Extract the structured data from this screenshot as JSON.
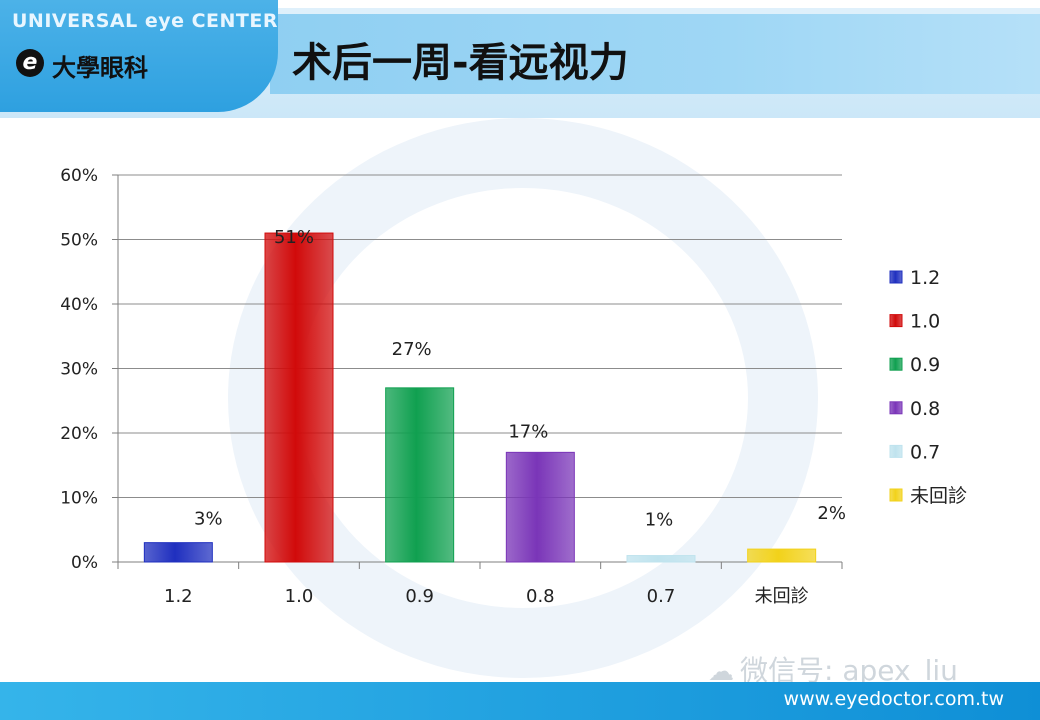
{
  "header": {
    "brand_en": "UNIVERSAL eye CENTER",
    "brand_mark": "e",
    "brand_zh": "大學眼科",
    "title": "术后一周-看远视力"
  },
  "footer": {
    "wechat": "微信号: apex_liu",
    "website": "www.eyedoctor.com.tw"
  },
  "chart_data": {
    "type": "bar",
    "title": "",
    "xlabel": "",
    "ylabel": "",
    "categories": [
      "1.2",
      "1.0",
      "0.9",
      "0.8",
      "0.7",
      "未回診"
    ],
    "values": [
      3,
      51,
      27,
      17,
      1,
      2
    ],
    "value_labels": [
      "3%",
      "51%",
      "27%",
      "17%",
      "1%",
      "2%"
    ],
    "colors": [
      "#1f2fbf",
      "#d10a0a",
      "#10a050",
      "#7a35b8",
      "#bfe3ee",
      "#f2d21a"
    ],
    "ylim": [
      0,
      60
    ],
    "yticks": [
      "0%",
      "10%",
      "20%",
      "30%",
      "40%",
      "50%",
      "60%"
    ],
    "grid": true,
    "legend": {
      "position": "right",
      "entries": [
        "1.2",
        "1.0",
        "0.9",
        "0.8",
        "0.7",
        "未回診"
      ]
    }
  }
}
